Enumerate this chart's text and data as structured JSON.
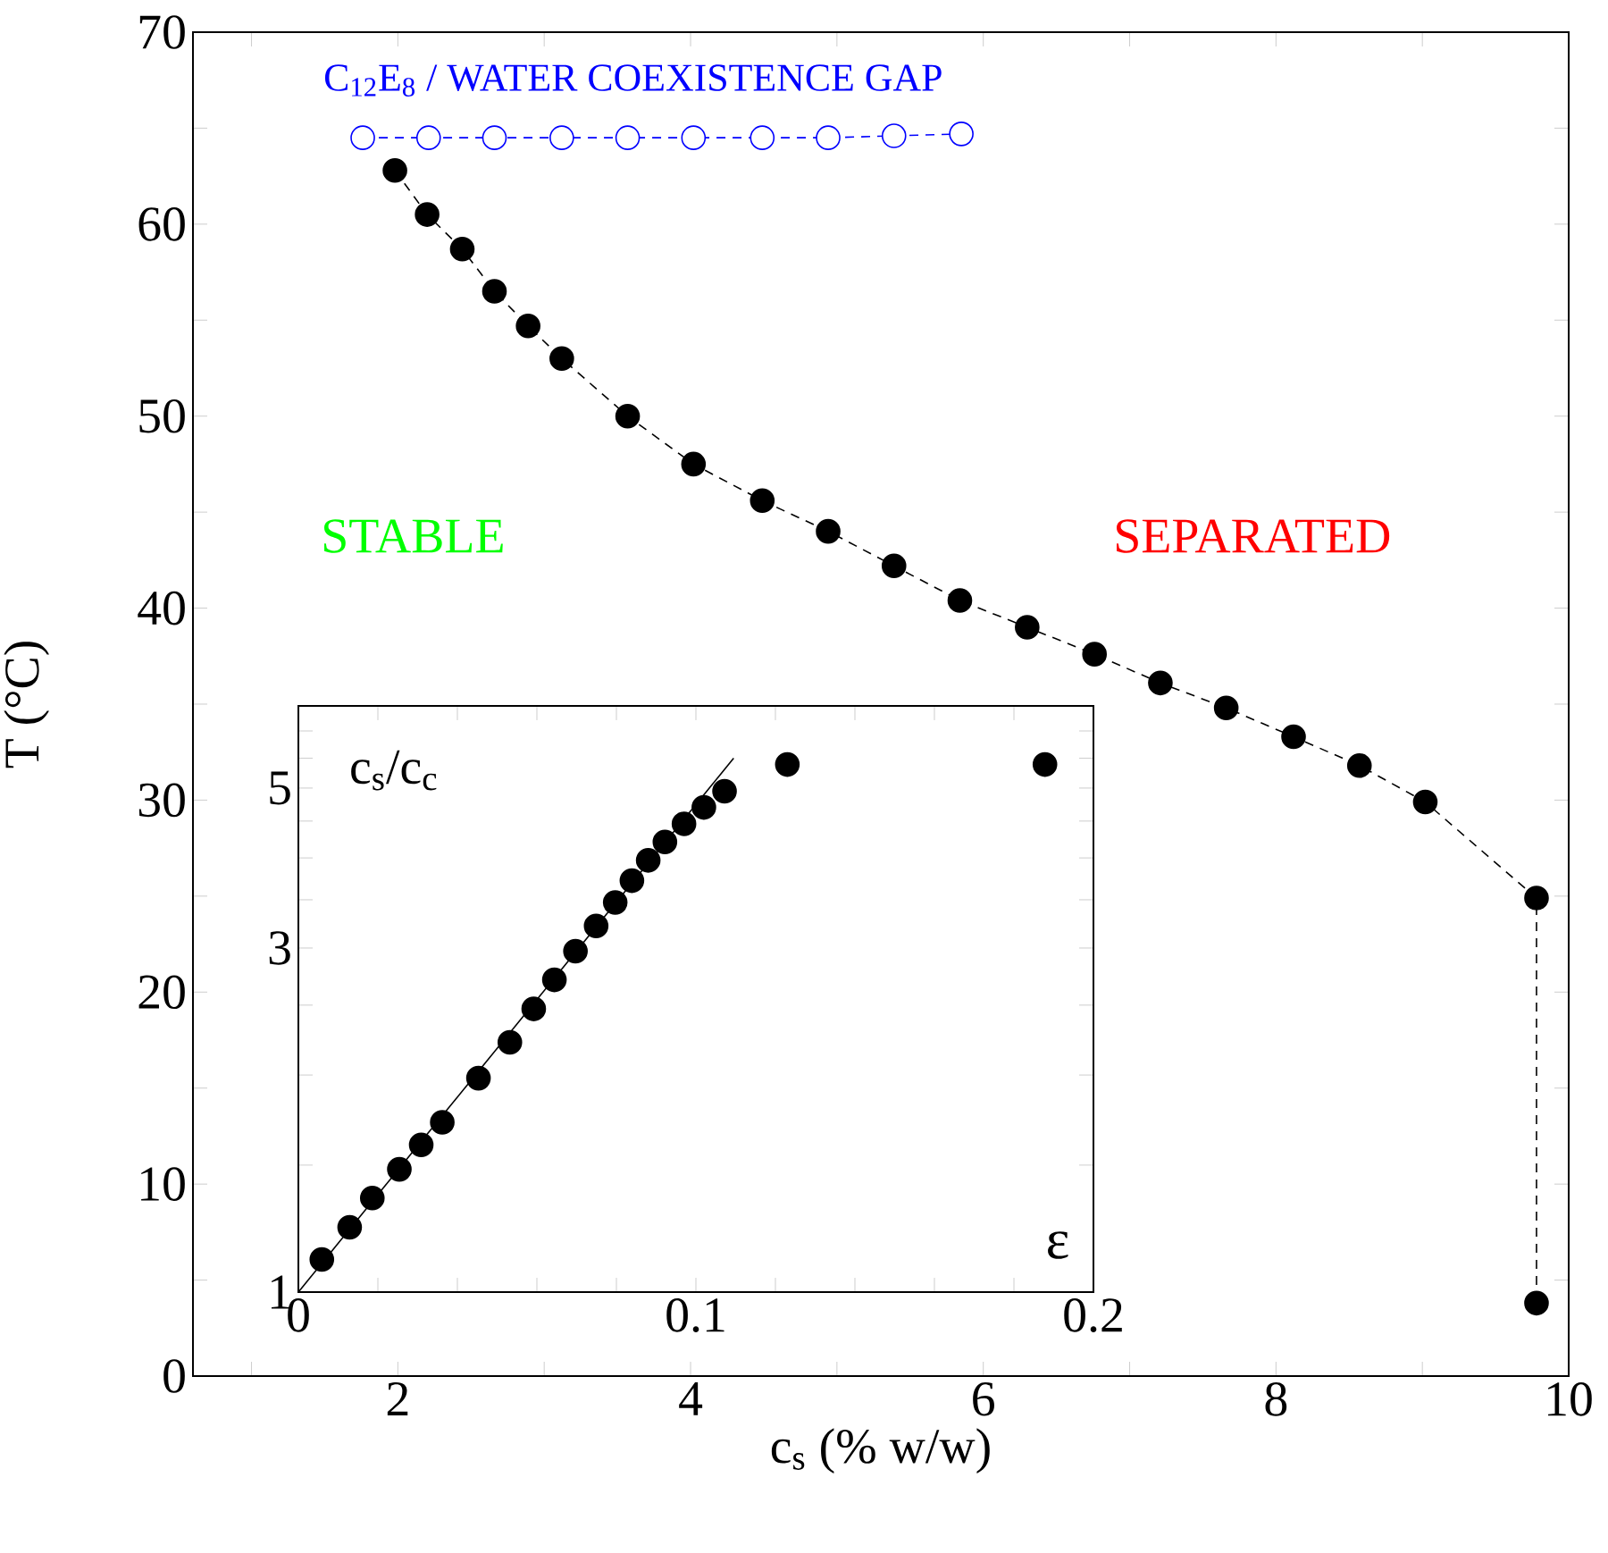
{
  "chart_data": [
    {
      "type": "line",
      "xlabel": "c$_{s}$ (% w/w)",
      "ylabel": "T (°C)",
      "annotations": [
        "STABLE",
        "SEPARATED"
      ],
      "xlim": [
        0.6,
        10
      ],
      "ylim": [
        0,
        70
      ],
      "xticks": [
        {
          "value": 1,
          "label": null
        },
        2,
        {
          "value": 3,
          "label": null
        },
        4,
        {
          "value": 5,
          "label": null
        },
        6,
        {
          "value": 7,
          "label": null
        },
        8,
        {
          "value": 9,
          "label": null
        },
        10
      ],
      "yticks": [
        0,
        {
          "value": 5,
          "label": null
        },
        10,
        {
          "value": 15,
          "label": null
        },
        20,
        {
          "value": 25,
          "label": null
        },
        30,
        {
          "value": 35,
          "label": null
        },
        40,
        {
          "value": 45,
          "label": null
        },
        50,
        {
          "value": 55,
          "label": null
        },
        60,
        {
          "value": 65,
          "label": null
        },
        70
      ],
      "marker": "circle",
      "line_style": "dashed",
      "series": [
        {
          "color": "#000000",
          "x": [
            1.98,
            2.2,
            2.44,
            2.66,
            2.89,
            3.12,
            3.57,
            4.02,
            4.49,
            4.94,
            5.39,
            5.84,
            6.3,
            6.76,
            7.21,
            7.66,
            8.12,
            8.57,
            9.02,
            9.78,
            9.78
          ],
          "values": [
            62.8,
            60.5,
            58.7,
            56.5,
            54.7,
            53.0,
            50.0,
            47.5,
            45.6,
            44.0,
            42.2,
            40.4,
            39.0,
            37.6,
            36.1,
            34.8,
            33.3,
            31.8,
            29.9,
            24.9,
            3.8
          ]
        },
        {
          "name": "C$_{12}$E$_{8}$ / WATER COEXISTENCE GAP",
          "color": "#0000ff",
          "x": [
            1.76,
            2.21,
            2.66,
            3.12,
            3.57,
            4.02,
            4.49,
            4.94,
            5.39,
            5.85
          ],
          "values": [
            64.5,
            64.5,
            64.5,
            64.5,
            64.5,
            64.5,
            64.5,
            64.5,
            64.6,
            64.7
          ]
        }
      ]
    },
    {
      "type": "scatter",
      "xlabel": "ε",
      "ylabel": "c$_{s}$/c$_{c}$",
      "log": "y",
      "xlim": [
        0,
        0.2
      ],
      "ylim": [
        1,
        6.5
      ],
      "xticks": [
        0,
        {
          "value": 0.02,
          "label": null
        },
        {
          "value": 0.04,
          "label": null
        },
        {
          "value": 0.06,
          "label": null
        },
        {
          "value": 0.08,
          "label": null
        },
        0.1,
        {
          "value": 0.12,
          "label": null
        },
        {
          "value": 0.14,
          "label": null
        },
        {
          "value": 0.16,
          "label": null
        },
        {
          "value": 0.18,
          "label": null
        },
        0.2
      ],
      "yticks": [
        1,
        {
          "value": 1.5,
          "label": null
        },
        {
          "value": 2,
          "label": null
        },
        {
          "value": 2.5,
          "label": null
        },
        3,
        {
          "value": 3.5,
          "label": null
        },
        {
          "value": 4,
          "label": null
        },
        {
          "value": 4.5,
          "label": null
        },
        5,
        {
          "value": 5.5,
          "label": null
        },
        {
          "value": 6,
          "label": null
        }
      ],
      "marker": "circle",
      "series": [
        {
          "color": "#000000",
          "x": [
            0.0059,
            0.0129,
            0.0186,
            0.0254,
            0.0309,
            0.0362,
            0.0453,
            0.0532,
            0.0592,
            0.0644,
            0.0697,
            0.0749,
            0.0797,
            0.0839,
            0.088,
            0.0922,
            0.097,
            0.102,
            0.1072,
            0.123,
            0.1878
          ],
          "values": [
            1.11,
            1.23,
            1.35,
            1.48,
            1.6,
            1.72,
            1.98,
            2.22,
            2.47,
            2.71,
            2.97,
            3.22,
            3.47,
            3.72,
            3.97,
            4.21,
            4.46,
            4.7,
            4.95,
            5.39,
            5.39
          ]
        },
        {
          "type": "line",
          "color": "#000000",
          "x": [
            0,
            0.1095
          ],
          "values": [
            1,
            5.5
          ],
          "marker": "none",
          "line_style": "solid"
        }
      ]
    }
  ]
}
